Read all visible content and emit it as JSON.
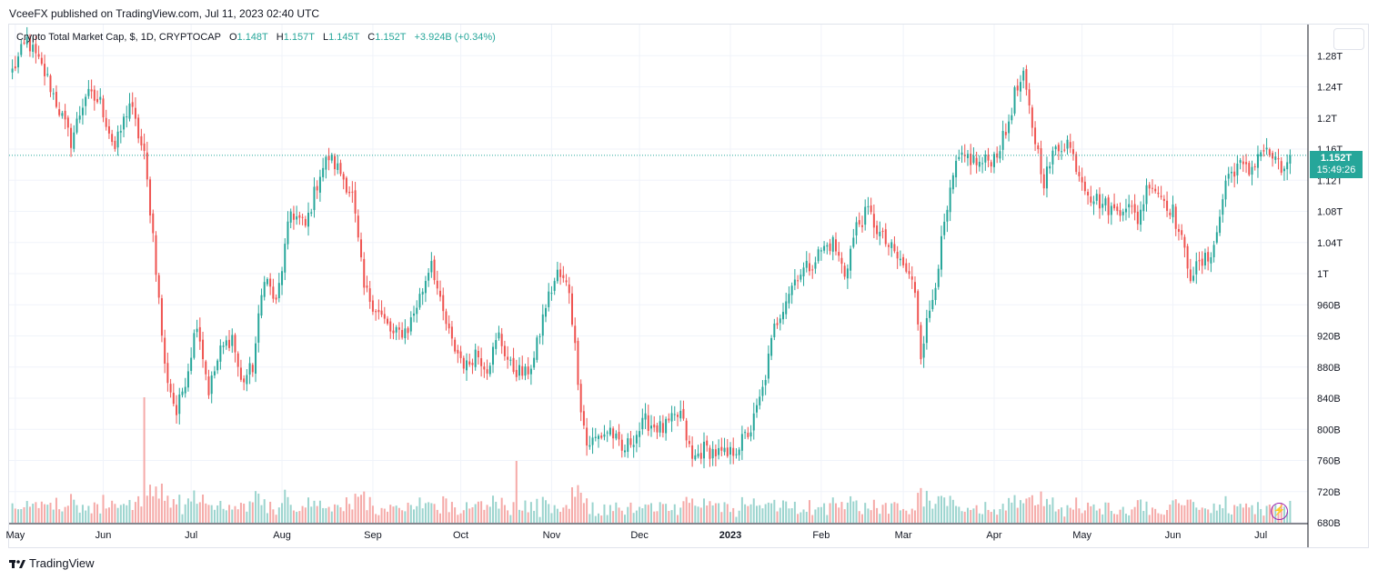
{
  "header": {
    "publisher_line": "VceeFX published on TradingView.com, Jul 11, 2023 02:40 UTC"
  },
  "legend": {
    "symbol": "Crypto Total Market Cap, $, 1D, CRYPTOCAP",
    "open_label": "O",
    "open": "1.148T",
    "high_label": "H",
    "high": "1.157T",
    "low_label": "L",
    "low": "1.145T",
    "close_label": "C",
    "close": "1.152T",
    "change": "+3.924B (+0.34%)"
  },
  "price_tag": {
    "price": "1.152T",
    "countdown": "15:49:26"
  },
  "footer": {
    "brand": "TradingView"
  },
  "colors": {
    "up": "#26a69a",
    "down": "#ef5350",
    "vol_up": "#9bd4ce",
    "vol_down": "#f5aaa8",
    "grid": "#f0f3fa",
    "text": "#131722"
  },
  "chart_data": {
    "type": "candlestick",
    "title": "Crypto Total Market Cap, $, 1D, CRYPTOCAP",
    "units": "USD billions",
    "ylim": [
      680,
      1320
    ],
    "last_price": 1152,
    "y_ticks": [
      {
        "value": 1280,
        "label": "1.28T"
      },
      {
        "value": 1240,
        "label": "1.24T"
      },
      {
        "value": 1200,
        "label": "1.2T"
      },
      {
        "value": 1160,
        "label": "1.16T"
      },
      {
        "value": 1120,
        "label": "1.12T"
      },
      {
        "value": 1080,
        "label": "1.08T"
      },
      {
        "value": 1040,
        "label": "1.04T"
      },
      {
        "value": 1000,
        "label": "1T"
      },
      {
        "value": 960,
        "label": "960B"
      },
      {
        "value": 920,
        "label": "920B"
      },
      {
        "value": 880,
        "label": "880B"
      },
      {
        "value": 840,
        "label": "840B"
      },
      {
        "value": 800,
        "label": "800B"
      },
      {
        "value": 760,
        "label": "760B"
      },
      {
        "value": 720,
        "label": "720B"
      },
      {
        "value": 680,
        "label": "680B"
      }
    ],
    "x_ticks": [
      {
        "index": 1,
        "label": "May",
        "bold": false
      },
      {
        "index": 31,
        "label": "Jun",
        "bold": false
      },
      {
        "index": 61,
        "label": "Jul",
        "bold": false
      },
      {
        "index": 92,
        "label": "Aug",
        "bold": false
      },
      {
        "index": 123,
        "label": "Sep",
        "bold": false
      },
      {
        "index": 153,
        "label": "Oct",
        "bold": false
      },
      {
        "index": 184,
        "label": "Nov",
        "bold": false
      },
      {
        "index": 214,
        "label": "Dec",
        "bold": false
      },
      {
        "index": 245,
        "label": "2023",
        "bold": true
      },
      {
        "index": 276,
        "label": "Feb",
        "bold": false
      },
      {
        "index": 304,
        "label": "Mar",
        "bold": false
      },
      {
        "index": 335,
        "label": "Apr",
        "bold": false
      },
      {
        "index": 365,
        "label": "May",
        "bold": false
      },
      {
        "index": 396,
        "label": "Jun",
        "bold": false
      },
      {
        "index": 426,
        "label": "Jul",
        "bold": false
      }
    ],
    "bar_count": 437,
    "anchors": [
      [
        0,
        1260
      ],
      [
        5,
        1300
      ],
      [
        12,
        1250
      ],
      [
        20,
        1170
      ],
      [
        25,
        1230
      ],
      [
        30,
        1220
      ],
      [
        35,
        1160
      ],
      [
        40,
        1220
      ],
      [
        45,
        1150
      ],
      [
        48,
        1050
      ],
      [
        52,
        880
      ],
      [
        56,
        820
      ],
      [
        60,
        880
      ],
      [
        63,
        940
      ],
      [
        67,
        850
      ],
      [
        71,
        900
      ],
      [
        75,
        920
      ],
      [
        78,
        860
      ],
      [
        82,
        880
      ],
      [
        86,
        1000
      ],
      [
        90,
        960
      ],
      [
        95,
        1080
      ],
      [
        100,
        1060
      ],
      [
        105,
        1130
      ],
      [
        108,
        1150
      ],
      [
        112,
        1130
      ],
      [
        116,
        1100
      ],
      [
        120,
        980
      ],
      [
        125,
        950
      ],
      [
        130,
        920
      ],
      [
        135,
        930
      ],
      [
        140,
        980
      ],
      [
        143,
        1020
      ],
      [
        146,
        960
      ],
      [
        150,
        910
      ],
      [
        155,
        880
      ],
      [
        158,
        900
      ],
      [
        162,
        880
      ],
      [
        166,
        920
      ],
      [
        170,
        880
      ],
      [
        175,
        870
      ],
      [
        178,
        890
      ],
      [
        182,
        960
      ],
      [
        186,
        1000
      ],
      [
        190,
        980
      ],
      [
        194,
        830
      ],
      [
        196,
        780
      ],
      [
        200,
        790
      ],
      [
        204,
        800
      ],
      [
        208,
        770
      ],
      [
        212,
        790
      ],
      [
        216,
        810
      ],
      [
        222,
        800
      ],
      [
        228,
        820
      ],
      [
        232,
        760
      ],
      [
        236,
        775
      ],
      [
        240,
        770
      ],
      [
        244,
        765
      ],
      [
        248,
        780
      ],
      [
        252,
        800
      ],
      [
        256,
        850
      ],
      [
        260,
        930
      ],
      [
        264,
        970
      ],
      [
        268,
        1000
      ],
      [
        272,
        1010
      ],
      [
        276,
        1030
      ],
      [
        280,
        1040
      ],
      [
        284,
        1000
      ],
      [
        288,
        1060
      ],
      [
        292,
        1080
      ],
      [
        296,
        1050
      ],
      [
        300,
        1030
      ],
      [
        304,
        1010
      ],
      [
        308,
        980
      ],
      [
        310,
        900
      ],
      [
        314,
        970
      ],
      [
        318,
        1060
      ],
      [
        322,
        1140
      ],
      [
        326,
        1150
      ],
      [
        330,
        1140
      ],
      [
        335,
        1150
      ],
      [
        339,
        1180
      ],
      [
        342,
        1230
      ],
      [
        345,
        1250
      ],
      [
        348,
        1190
      ],
      [
        352,
        1120
      ],
      [
        356,
        1160
      ],
      [
        360,
        1170
      ],
      [
        364,
        1130
      ],
      [
        368,
        1100
      ],
      [
        372,
        1090
      ],
      [
        376,
        1080
      ],
      [
        380,
        1090
      ],
      [
        384,
        1070
      ],
      [
        388,
        1120
      ],
      [
        392,
        1100
      ],
      [
        396,
        1080
      ],
      [
        399,
        1040
      ],
      [
        402,
        1000
      ],
      [
        405,
        1010
      ],
      [
        408,
        1020
      ],
      [
        411,
        1050
      ],
      [
        414,
        1120
      ],
      [
        418,
        1140
      ],
      [
        422,
        1130
      ],
      [
        426,
        1160
      ],
      [
        430,
        1150
      ],
      [
        433,
        1130
      ],
      [
        436,
        1152
      ]
    ],
    "volume_note": "volume bars along the bottom edge, taller on high-volatility days"
  }
}
